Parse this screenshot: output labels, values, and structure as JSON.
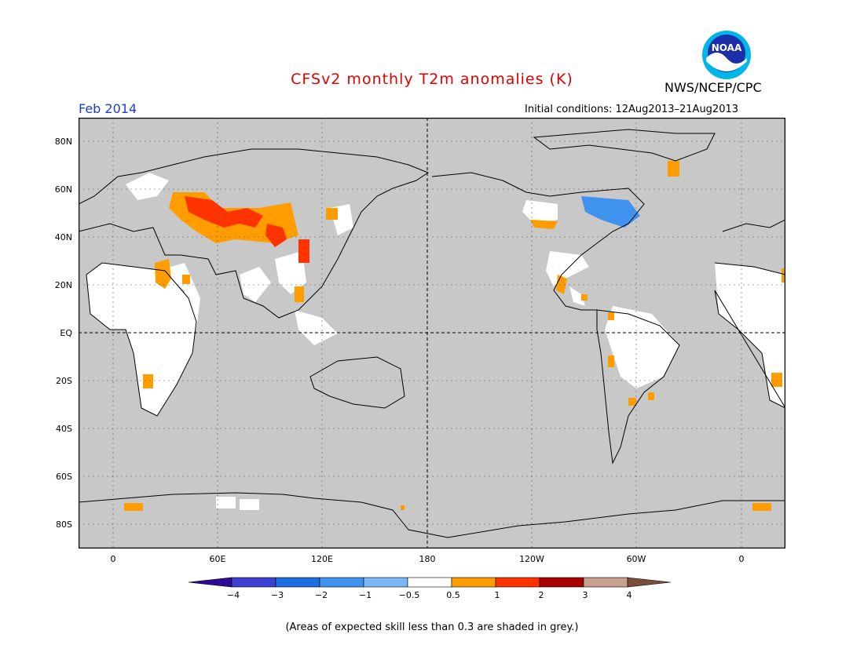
{
  "title": "CFSv2 monthly T2m anomalies (K)",
  "agency": "NWS/NCEP/CPC",
  "logo_text": "NOAA",
  "month": "Feb 2014",
  "initial_conditions": "Initial conditions: 12Aug2013–21Aug2013",
  "lat_labels": [
    "80N",
    "60N",
    "40N",
    "20N",
    "EQ",
    "20S",
    "40S",
    "60S",
    "80S"
  ],
  "lon_labels": [
    "0",
    "60E",
    "120E",
    "180",
    "120W",
    "60W",
    "0"
  ],
  "colorbar": {
    "labels": [
      "−4",
      "−3",
      "−2",
      "−1",
      "−0.5",
      "0.5",
      "1",
      "2",
      "3",
      "4"
    ],
    "colors": [
      "#2a0a96",
      "#3f3fd2",
      "#1d6ee0",
      "#3f93ee",
      "#7ab8f5",
      "#ffffff",
      "#ff9d00",
      "#ff3300",
      "#a80000",
      "#c8a090",
      "#7a4c3a"
    ]
  },
  "footnote": "(Areas of expected skill less than 0.3 are shaded in grey.)",
  "colors": {
    "title": "#e00000",
    "month": "#1f3bd6",
    "ocean_grey": "#c8c8c8",
    "warm": "#ff9d00",
    "hot": "#ff3300",
    "cool": "#3f93ee"
  }
}
